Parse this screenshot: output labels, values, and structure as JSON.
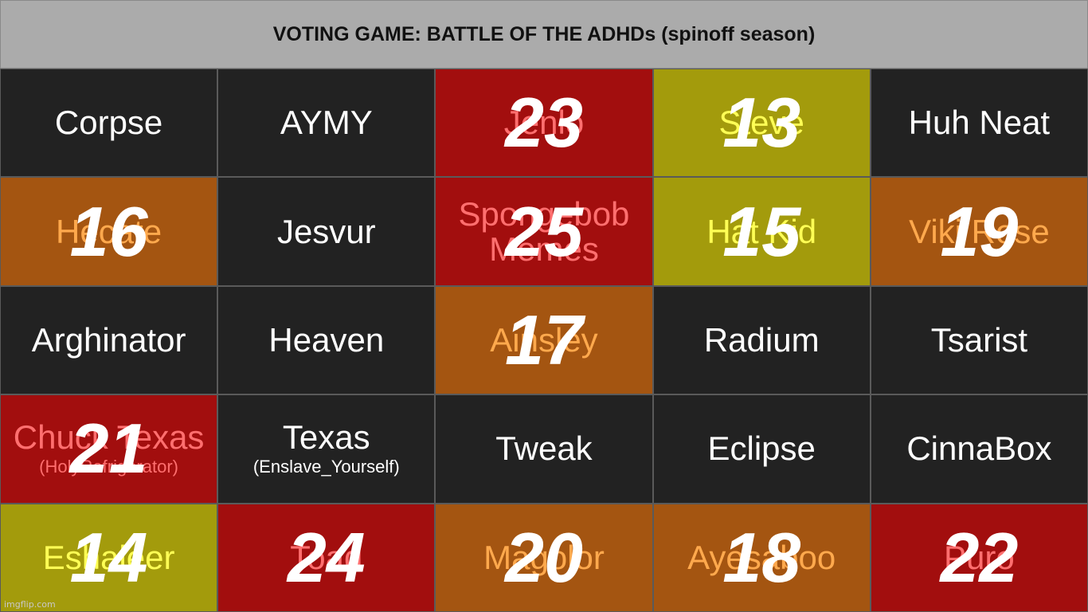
{
  "title": "VOTING GAME: BATTLE OF THE ADHDs (spinoff season)",
  "watermark": "imgflip.com",
  "colors": {
    "dark": "#222222",
    "red": "#a20e0e",
    "olive": "#a39b0c",
    "orange": "#a45511",
    "header": "#ababab"
  },
  "rows": [
    [
      {
        "name": "Corpse",
        "sub": "",
        "color": "dark",
        "score": ""
      },
      {
        "name": "AYMY",
        "sub": "",
        "color": "dark",
        "score": ""
      },
      {
        "name": "Jenlo",
        "sub": "",
        "color": "red",
        "score": "23"
      },
      {
        "name": "Steve",
        "sub": "",
        "color": "olive",
        "score": "13"
      },
      {
        "name": "Huh Neat",
        "sub": "",
        "color": "dark",
        "score": ""
      }
    ],
    [
      {
        "name": "Hecate",
        "sub": "",
        "color": "orange",
        "score": "16"
      },
      {
        "name": "Jesvur",
        "sub": "",
        "color": "dark",
        "score": ""
      },
      {
        "name": "Spongebob Memes",
        "sub": "",
        "color": "red",
        "score": "25"
      },
      {
        "name": "Hat Kid",
        "sub": "",
        "color": "olive",
        "score": "15"
      },
      {
        "name": "Viki Rose",
        "sub": "",
        "color": "orange",
        "score": "19"
      }
    ],
    [
      {
        "name": "Arghinator",
        "sub": "",
        "color": "dark",
        "score": ""
      },
      {
        "name": "Heaven",
        "sub": "",
        "color": "dark",
        "score": ""
      },
      {
        "name": "Ainsley",
        "sub": "",
        "color": "orange",
        "score": "17"
      },
      {
        "name": "Radium",
        "sub": "",
        "color": "dark",
        "score": ""
      },
      {
        "name": "Tsarist",
        "sub": "",
        "color": "dark",
        "score": ""
      }
    ],
    [
      {
        "name": "Chuck Texas",
        "sub": "(HolyRefrigerator)",
        "color": "red",
        "score": "21"
      },
      {
        "name": "Texas",
        "sub": "(Enslave_Yourself)",
        "color": "dark",
        "score": ""
      },
      {
        "name": "Tweak",
        "sub": "",
        "color": "dark",
        "score": ""
      },
      {
        "name": "Eclipse",
        "sub": "",
        "color": "dark",
        "score": ""
      },
      {
        "name": "CinnaBox",
        "sub": "",
        "color": "dark",
        "score": ""
      }
    ],
    [
      {
        "name": "Eshaleer",
        "sub": "",
        "color": "olive",
        "score": "14"
      },
      {
        "name": "Toad",
        "sub": "",
        "color": "red",
        "score": "24"
      },
      {
        "name": "Magolor",
        "sub": "",
        "color": "orange",
        "score": "20"
      },
      {
        "name": "Ayesaboo",
        "sub": "",
        "color": "orange",
        "score": "18"
      },
      {
        "name": "Puro",
        "sub": "",
        "color": "red",
        "score": "22"
      }
    ]
  ]
}
